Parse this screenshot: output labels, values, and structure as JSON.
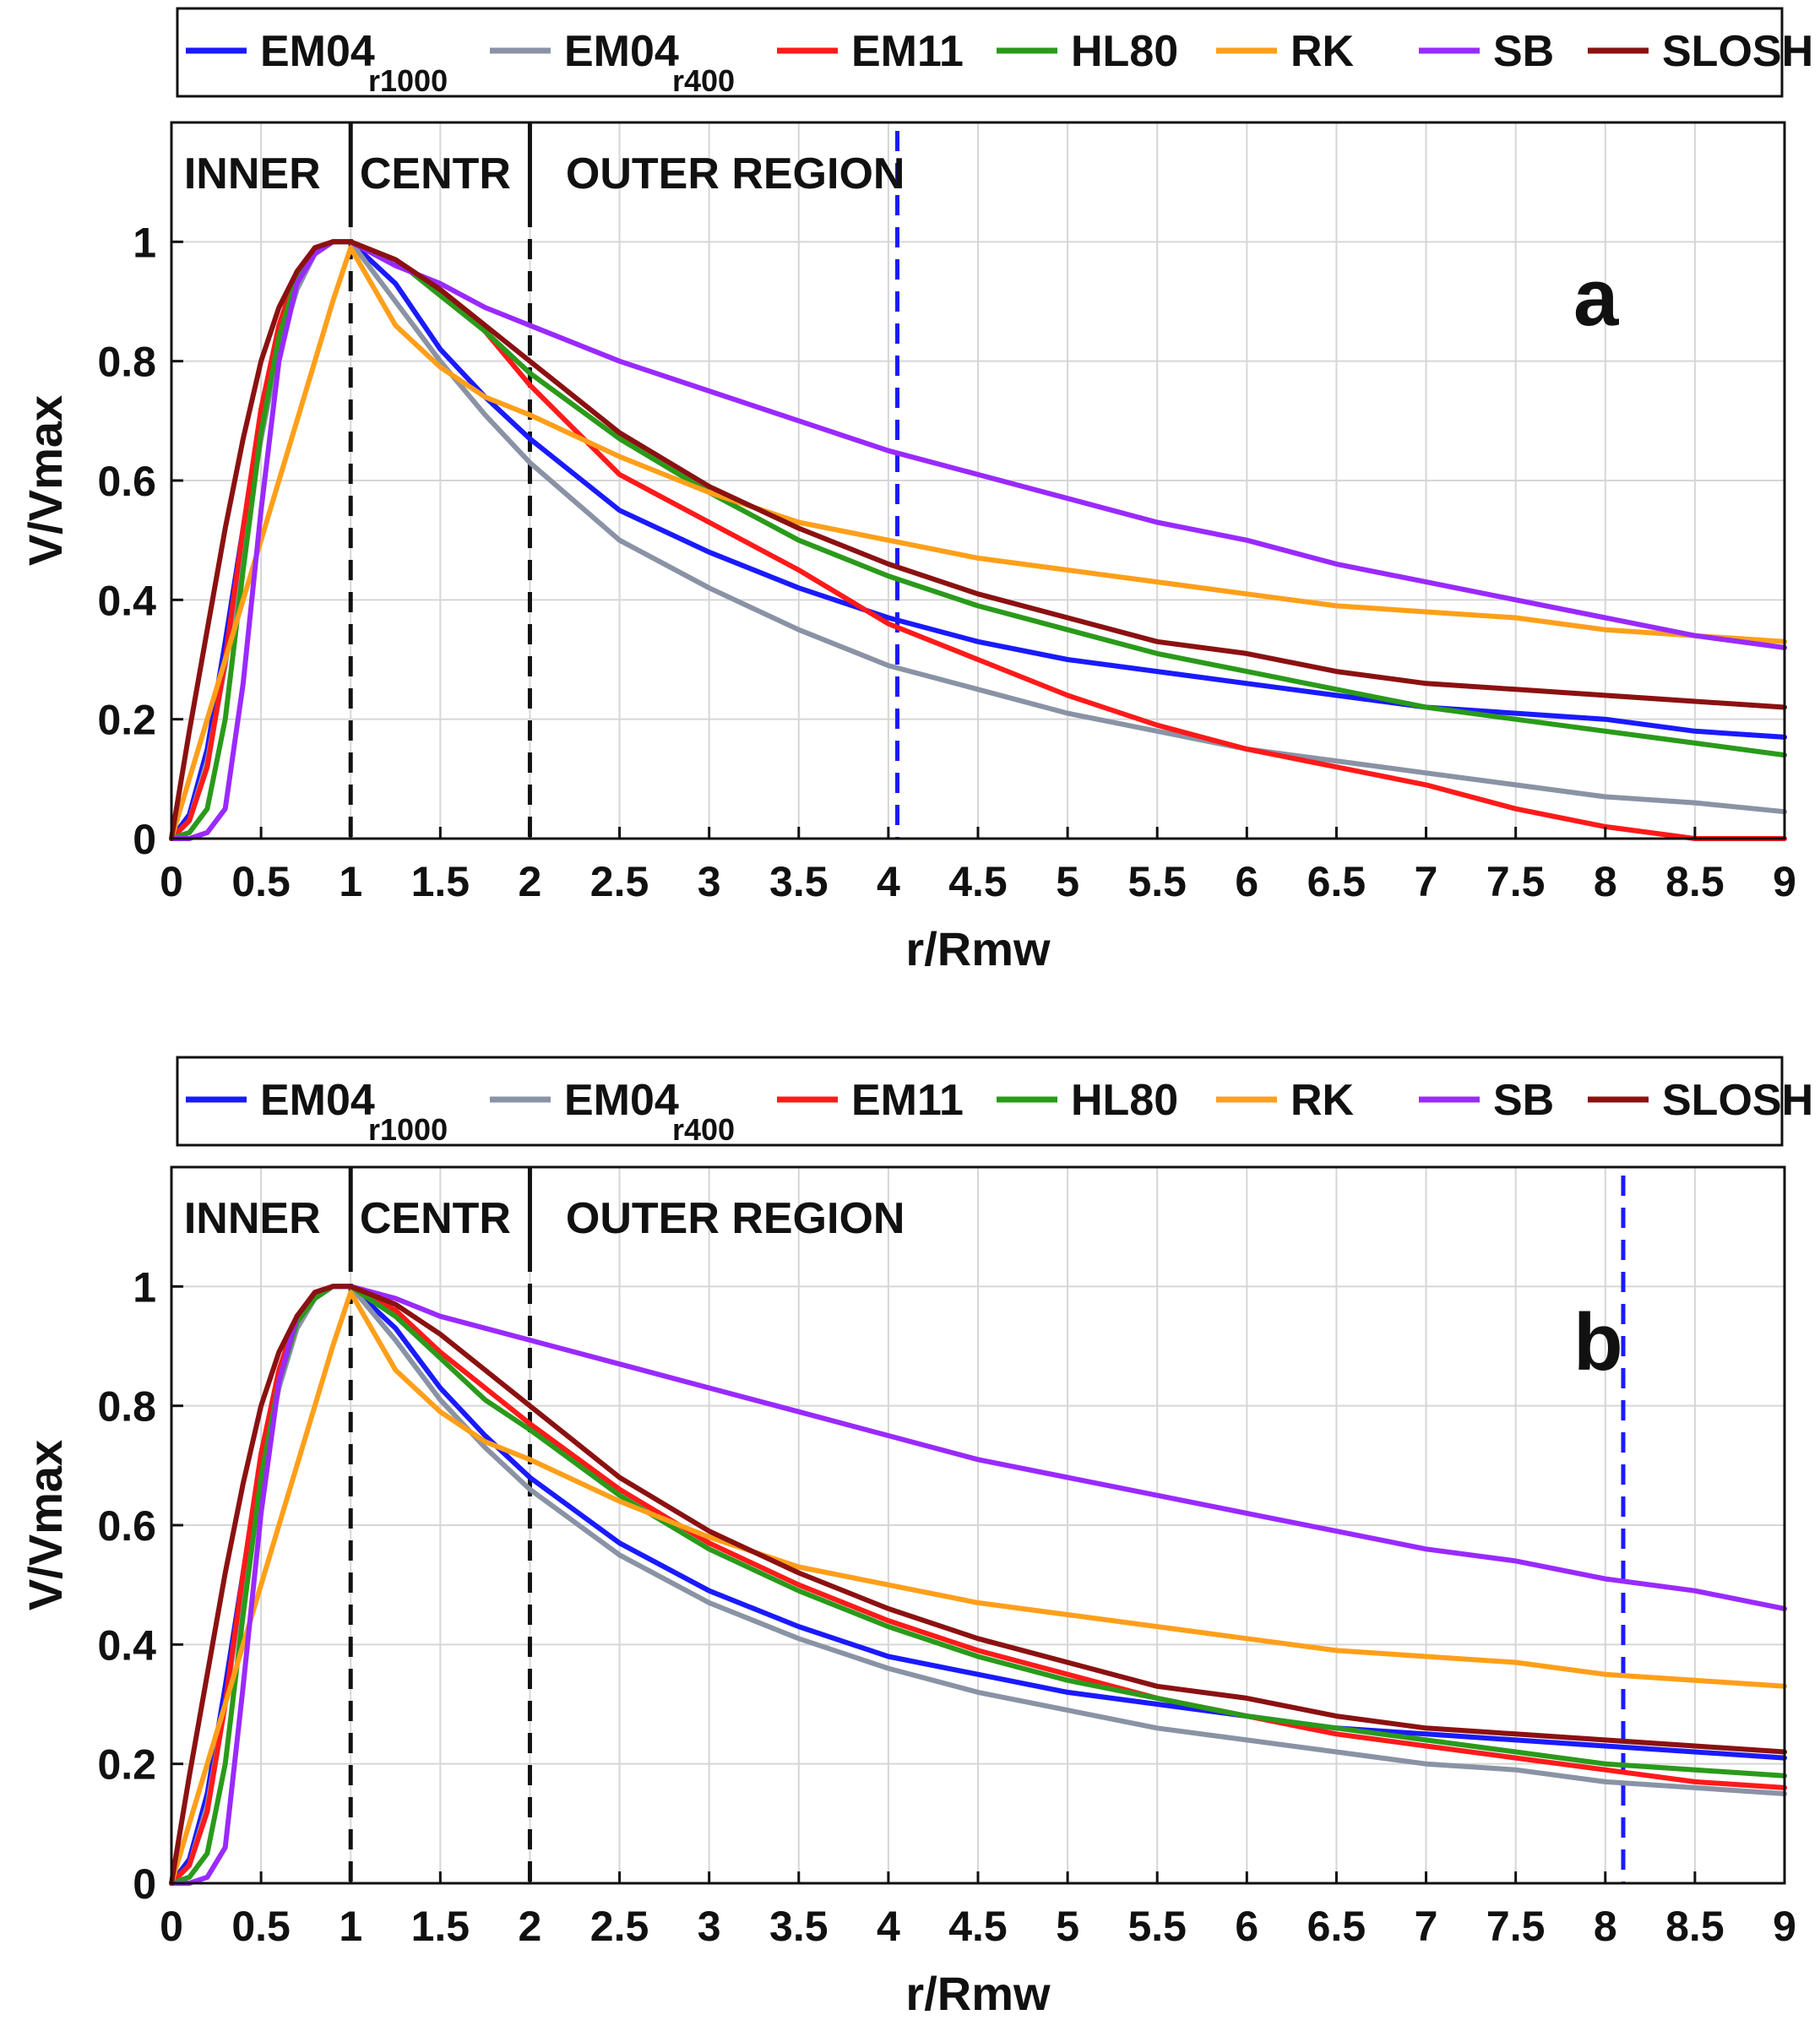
{
  "chart_data": [
    {
      "type": "line",
      "panel_label": "a",
      "xlabel": "r/Rmw",
      "ylabel": "V/Vmax",
      "xlim": [
        0,
        9
      ],
      "ylim": [
        0,
        1.2
      ],
      "x_ticks": [
        "0",
        "0.5",
        "1",
        "1.5",
        "2",
        "2.5",
        "3",
        "3.5",
        "4",
        "4.5",
        "5",
        "5.5",
        "6",
        "6.5",
        "7",
        "7.5",
        "8",
        "8.5",
        "9"
      ],
      "y_ticks": [
        "0",
        "0.2",
        "0.4",
        "0.6",
        "0.8",
        "1"
      ],
      "grid": true,
      "legend_position": "top, outside plot",
      "region_labels": [
        {
          "text": "INNER",
          "x": 0.07
        },
        {
          "text": "CENTR",
          "x": 1.05
        },
        {
          "text": "OUTER REGION",
          "x": 2.2
        }
      ],
      "vertical_lines": [
        {
          "x": 1,
          "color": "#111111",
          "style": "dashed"
        },
        {
          "x": 2,
          "color": "#111111",
          "style": "dashed"
        },
        {
          "x": 4.05,
          "color": "#1a1aff",
          "style": "dashed"
        }
      ],
      "x": [
        0,
        0.1,
        0.2,
        0.3,
        0.4,
        0.5,
        0.6,
        0.7,
        0.8,
        0.9,
        1,
        1.25,
        1.5,
        1.75,
        2,
        2.5,
        3,
        3.5,
        4,
        4.5,
        5,
        5.5,
        6,
        6.5,
        7,
        7.5,
        8,
        8.5,
        9
      ],
      "series": [
        {
          "name": "EM04",
          "subscript": "r1000",
          "color": "#1a1aff",
          "values": [
            0,
            0.04,
            0.15,
            0.33,
            0.52,
            0.7,
            0.84,
            0.93,
            0.98,
            1.0,
            1.0,
            0.93,
            0.82,
            0.74,
            0.67,
            0.55,
            0.48,
            0.42,
            0.37,
            0.33,
            0.3,
            0.28,
            0.26,
            0.24,
            0.22,
            0.21,
            0.2,
            0.18,
            0.17
          ]
        },
        {
          "name": "EM04",
          "subscript": "r400",
          "color": "#8a93a5",
          "values": [
            0,
            0.03,
            0.13,
            0.29,
            0.49,
            0.67,
            0.82,
            0.92,
            0.98,
            1.0,
            1.0,
            0.9,
            0.8,
            0.71,
            0.63,
            0.5,
            0.42,
            0.35,
            0.29,
            0.25,
            0.21,
            0.18,
            0.15,
            0.13,
            0.11,
            0.09,
            0.07,
            0.06,
            0.045
          ]
        },
        {
          "name": "EM11",
          "color": "#ff1a1a",
          "values": [
            0,
            0.03,
            0.12,
            0.3,
            0.52,
            0.72,
            0.86,
            0.95,
            0.99,
            1.0,
            1.0,
            0.97,
            0.92,
            0.85,
            0.76,
            0.61,
            0.53,
            0.45,
            0.36,
            0.3,
            0.24,
            0.19,
            0.15,
            0.12,
            0.09,
            0.05,
            0.02,
            0.0,
            0.0
          ]
        },
        {
          "name": "HL80",
          "color": "#2a9a1a",
          "values": [
            0,
            0.01,
            0.05,
            0.2,
            0.45,
            0.68,
            0.84,
            0.94,
            0.98,
            1.0,
            1.0,
            0.97,
            0.91,
            0.85,
            0.78,
            0.67,
            0.58,
            0.5,
            0.44,
            0.39,
            0.35,
            0.31,
            0.28,
            0.25,
            0.22,
            0.2,
            0.18,
            0.16,
            0.14
          ]
        },
        {
          "name": "RK",
          "color": "#ff9f1a",
          "values": [
            0,
            0.1,
            0.2,
            0.3,
            0.4,
            0.5,
            0.6,
            0.7,
            0.8,
            0.9,
            0.99,
            0.86,
            0.79,
            0.74,
            0.71,
            0.64,
            0.58,
            0.53,
            0.5,
            0.47,
            0.45,
            0.43,
            0.41,
            0.39,
            0.38,
            0.37,
            0.35,
            0.34,
            0.33
          ]
        },
        {
          "name": "SB",
          "color": "#9a2aff",
          "values": [
            0,
            0.0,
            0.01,
            0.05,
            0.26,
            0.55,
            0.8,
            0.93,
            0.98,
            1.0,
            1.0,
            0.96,
            0.93,
            0.89,
            0.86,
            0.8,
            0.75,
            0.7,
            0.65,
            0.61,
            0.57,
            0.53,
            0.5,
            0.46,
            0.43,
            0.4,
            0.37,
            0.34,
            0.32
          ]
        },
        {
          "name": "SLOSH",
          "color": "#8b1111",
          "values": [
            0,
            0.18,
            0.35,
            0.52,
            0.67,
            0.8,
            0.89,
            0.95,
            0.99,
            1.0,
            1.0,
            0.97,
            0.92,
            0.86,
            0.8,
            0.68,
            0.59,
            0.52,
            0.46,
            0.41,
            0.37,
            0.33,
            0.31,
            0.28,
            0.26,
            0.25,
            0.24,
            0.23,
            0.22
          ]
        }
      ]
    },
    {
      "type": "line",
      "panel_label": "b",
      "xlabel": "r/Rmw",
      "ylabel": "V/Vmax",
      "xlim": [
        0,
        9
      ],
      "ylim": [
        0,
        1.2
      ],
      "x_ticks": [
        "0",
        "0.5",
        "1",
        "1.5",
        "2",
        "2.5",
        "3",
        "3.5",
        "4",
        "4.5",
        "5",
        "5.5",
        "6",
        "6.5",
        "7",
        "7.5",
        "8",
        "8.5",
        "9"
      ],
      "y_ticks": [
        "0",
        "0.2",
        "0.4",
        "0.6",
        "0.8",
        "1"
      ],
      "grid": true,
      "legend_position": "top, outside plot",
      "region_labels": [
        {
          "text": "INNER",
          "x": 0.07
        },
        {
          "text": "CENTR",
          "x": 1.05
        },
        {
          "text": "OUTER REGION",
          "x": 2.2
        }
      ],
      "vertical_lines": [
        {
          "x": 1,
          "color": "#111111",
          "style": "dashed"
        },
        {
          "x": 2,
          "color": "#111111",
          "style": "dashed"
        },
        {
          "x": 8.1,
          "color": "#1a1aff",
          "style": "dashed"
        }
      ],
      "x": [
        0,
        0.1,
        0.2,
        0.3,
        0.4,
        0.5,
        0.6,
        0.7,
        0.8,
        0.9,
        1,
        1.25,
        1.5,
        1.75,
        2,
        2.5,
        3,
        3.5,
        4,
        4.5,
        5,
        5.5,
        6,
        6.5,
        7,
        7.5,
        8,
        8.5,
        9
      ],
      "series": [
        {
          "name": "EM04",
          "subscript": "r1000",
          "color": "#1a1aff",
          "values": [
            0,
            0.04,
            0.15,
            0.33,
            0.52,
            0.7,
            0.84,
            0.93,
            0.98,
            1.0,
            1.0,
            0.93,
            0.83,
            0.75,
            0.68,
            0.57,
            0.49,
            0.43,
            0.38,
            0.35,
            0.32,
            0.3,
            0.28,
            0.26,
            0.25,
            0.24,
            0.23,
            0.22,
            0.21
          ]
        },
        {
          "name": "EM04",
          "subscript": "r400",
          "color": "#8a93a5",
          "values": [
            0,
            0.03,
            0.13,
            0.3,
            0.5,
            0.68,
            0.83,
            0.93,
            0.98,
            1.0,
            1.0,
            0.91,
            0.81,
            0.73,
            0.66,
            0.55,
            0.47,
            0.41,
            0.36,
            0.32,
            0.29,
            0.26,
            0.24,
            0.22,
            0.2,
            0.19,
            0.17,
            0.16,
            0.15
          ]
        },
        {
          "name": "EM11",
          "color": "#ff1a1a",
          "values": [
            0,
            0.03,
            0.12,
            0.3,
            0.52,
            0.72,
            0.86,
            0.95,
            0.99,
            1.0,
            1.0,
            0.96,
            0.89,
            0.83,
            0.77,
            0.66,
            0.57,
            0.5,
            0.44,
            0.39,
            0.35,
            0.31,
            0.28,
            0.25,
            0.23,
            0.21,
            0.19,
            0.17,
            0.16
          ]
        },
        {
          "name": "HL80",
          "color": "#2a9a1a",
          "values": [
            0,
            0.01,
            0.05,
            0.2,
            0.45,
            0.68,
            0.84,
            0.94,
            0.98,
            1.0,
            1.0,
            0.95,
            0.88,
            0.81,
            0.76,
            0.65,
            0.56,
            0.49,
            0.43,
            0.38,
            0.34,
            0.31,
            0.28,
            0.26,
            0.24,
            0.22,
            0.2,
            0.19,
            0.18
          ]
        },
        {
          "name": "RK",
          "color": "#ff9f1a",
          "values": [
            0,
            0.1,
            0.2,
            0.3,
            0.4,
            0.5,
            0.6,
            0.7,
            0.8,
            0.9,
            0.99,
            0.86,
            0.79,
            0.74,
            0.71,
            0.64,
            0.58,
            0.53,
            0.5,
            0.47,
            0.45,
            0.43,
            0.41,
            0.39,
            0.38,
            0.37,
            0.35,
            0.34,
            0.33
          ]
        },
        {
          "name": "SB",
          "color": "#9a2aff",
          "values": [
            0,
            0.0,
            0.01,
            0.06,
            0.33,
            0.62,
            0.84,
            0.95,
            0.99,
            1.0,
            1.0,
            0.98,
            0.95,
            0.93,
            0.91,
            0.87,
            0.83,
            0.79,
            0.75,
            0.71,
            0.68,
            0.65,
            0.62,
            0.59,
            0.56,
            0.54,
            0.51,
            0.49,
            0.46
          ]
        },
        {
          "name": "SLOSH",
          "color": "#8b1111",
          "values": [
            0,
            0.18,
            0.35,
            0.52,
            0.67,
            0.8,
            0.89,
            0.95,
            0.99,
            1.0,
            1.0,
            0.97,
            0.92,
            0.86,
            0.8,
            0.68,
            0.59,
            0.52,
            0.46,
            0.41,
            0.37,
            0.33,
            0.31,
            0.28,
            0.26,
            0.25,
            0.24,
            0.23,
            0.22
          ]
        }
      ]
    }
  ]
}
